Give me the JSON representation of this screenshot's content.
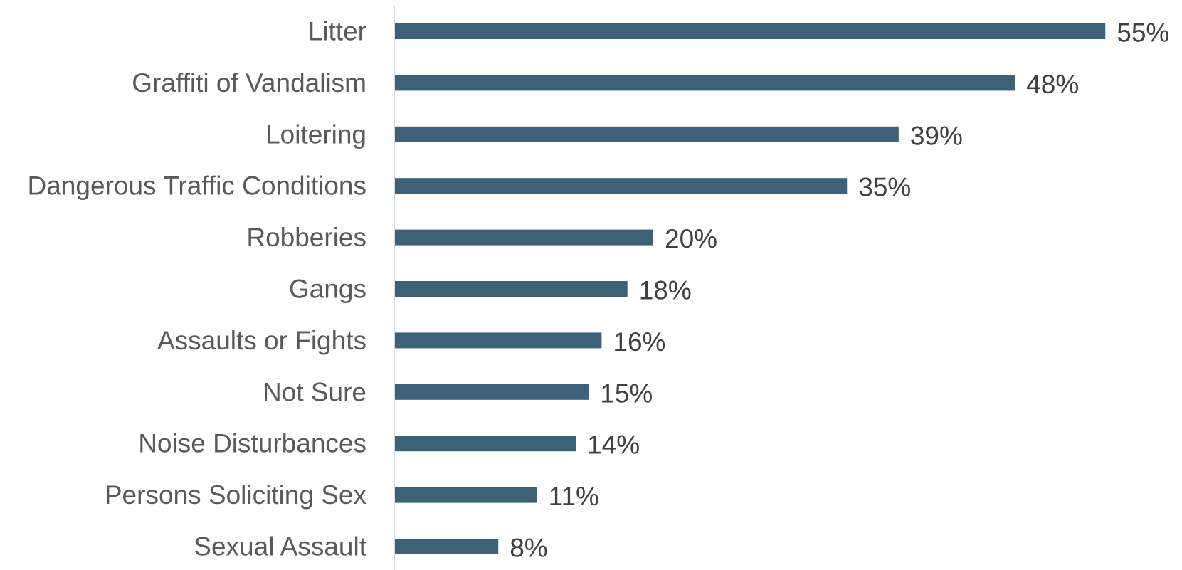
{
  "chart_data": {
    "type": "bar",
    "orientation": "horizontal",
    "title": "",
    "xlabel": "",
    "ylabel": "",
    "categories": [
      "Litter",
      "Graffiti of Vandalism",
      "Loitering",
      "Dangerous Traffic Conditions",
      "Robberies",
      "Gangs",
      "Assaults or Fights",
      "Not Sure",
      "Noise Disturbances",
      "Persons Soliciting Sex",
      "Sexual Assault"
    ],
    "values": [
      55,
      48,
      39,
      35,
      20,
      18,
      16,
      15,
      14,
      11,
      8
    ],
    "value_labels": [
      "55%",
      "48%",
      "39%",
      "35%",
      "20%",
      "18%",
      "16%",
      "15%",
      "14%",
      "11%",
      "8%"
    ],
    "unit": "%",
    "xlim": [
      0,
      55
    ],
    "grid": false,
    "legend": "none",
    "colors": {
      "bar": "#3d6278",
      "axis": "#d9d9d9",
      "category_text": "#595959",
      "value_text": "#404040"
    }
  }
}
